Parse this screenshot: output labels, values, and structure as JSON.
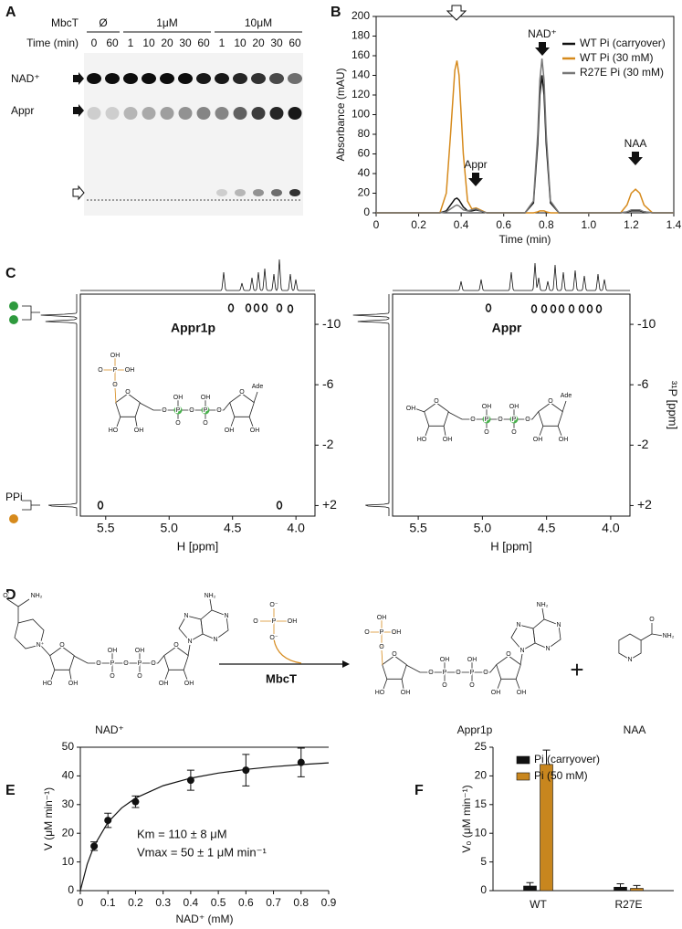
{
  "panel_labels": [
    "A",
    "B",
    "C",
    "D",
    "E",
    "F"
  ],
  "gel": {
    "enzyme_label": "MbcT",
    "time_label": "Time (min)",
    "groups": [
      "Ø",
      "1μM",
      "10μM"
    ],
    "lanes": [
      "0",
      "60",
      "1",
      "10",
      "20",
      "30",
      "60",
      "1",
      "10",
      "20",
      "30",
      "60"
    ],
    "spots": [
      "NAD⁺",
      "Appr"
    ]
  },
  "chart_data": [
    {
      "type": "line",
      "xlabel": "Time (min)",
      "ylabel": "Absorbance (mAU)",
      "x": [
        0,
        0.1,
        0.2,
        0.3,
        0.33,
        0.35,
        0.37,
        0.38,
        0.39,
        0.41,
        0.43,
        0.45,
        0.47,
        0.49,
        0.52,
        0.6,
        0.7,
        0.74,
        0.76,
        0.77,
        0.78,
        0.79,
        0.8,
        0.82,
        0.86,
        1.0,
        1.15,
        1.18,
        1.2,
        1.22,
        1.24,
        1.26,
        1.3,
        1.4
      ],
      "series": [
        {
          "name": "WT Pi (carryover)",
          "color": "#111111",
          "values": [
            0,
            0,
            0,
            0,
            2,
            8,
            14,
            15,
            13,
            6,
            2,
            2,
            3,
            2,
            0,
            0,
            0,
            10,
            70,
            120,
            140,
            120,
            70,
            10,
            0,
            0,
            0,
            1,
            2,
            2,
            2,
            1,
            0,
            0
          ]
        },
        {
          "name": "WT Pi (30 mM)",
          "color": "#d68a1c",
          "values": [
            0,
            0,
            0,
            0,
            20,
            80,
            145,
            155,
            140,
            60,
            12,
            4,
            5,
            3,
            0,
            0,
            0,
            0,
            1,
            2,
            2,
            2,
            1,
            0,
            0,
            0,
            0,
            8,
            20,
            24,
            20,
            8,
            0,
            0
          ]
        },
        {
          "name": "R27E Pi (30 mM)",
          "color": "#777777",
          "values": [
            0,
            0,
            0,
            0,
            1,
            4,
            7,
            8,
            7,
            3,
            2,
            3,
            4,
            2,
            0,
            0,
            0,
            12,
            80,
            135,
            157,
            135,
            80,
            12,
            0,
            0,
            0,
            1,
            3,
            3,
            3,
            1,
            0,
            0
          ]
        }
      ],
      "xlim": [
        0,
        1.4
      ],
      "xticks": [
        0,
        0.2,
        0.4,
        0.6,
        0.8,
        {
          "value": 1,
          "label": "1.0"
        },
        1.2,
        1.4
      ],
      "ylim": [
        0,
        200
      ],
      "yticks": [
        0,
        20,
        40,
        60,
        80,
        100,
        120,
        140,
        160,
        180,
        200
      ],
      "annotations": [
        "Appr",
        "NAD⁺",
        "NAA"
      ],
      "legend": "upper right"
    },
    {
      "type": "nmr2d",
      "title": "Appr1p",
      "xlabel": "H [ppm]",
      "xlim": [
        5.7,
        3.85
      ],
      "xticks": [
        5.5,
        {
          "value": 5,
          "label": "5.0"
        },
        4.5,
        {
          "value": 4,
          "label": "4.0"
        }
      ],
      "ylim": [
        -12,
        2.7
      ],
      "yticks": [
        -10,
        -6,
        -2,
        {
          "value": 2,
          "label": "+2"
        }
      ],
      "side_label": "PPi",
      "structure": [
        "O",
        "HO",
        "OH",
        "O",
        "P",
        "OH",
        "O",
        "O",
        "P",
        "OH",
        "O",
        "O",
        "O",
        "OH",
        "OH",
        "O",
        "P",
        "OH",
        "O",
        "OH",
        "Ade"
      ]
    },
    {
      "type": "nmr2d",
      "title": "Appr",
      "xlabel": "H [ppm]",
      "ylabel": "³¹P [ppm]",
      "xlim": [
        5.7,
        3.85
      ],
      "xticks": [
        5.5,
        {
          "value": 5,
          "label": "5.0"
        },
        4.5,
        {
          "value": 4,
          "label": "4.0"
        }
      ],
      "ylim": [
        -12,
        2.7
      ],
      "yticks": [
        -10,
        -6,
        -2,
        {
          "value": 2,
          "label": "+2"
        }
      ],
      "structure": [
        "O",
        "HO",
        "OH",
        "O",
        "P",
        "OH",
        "O",
        "O",
        "P",
        "OH",
        "O",
        "O",
        "O",
        "OH",
        "OH",
        "OH",
        "Ade"
      ]
    },
    {
      "type": "scatter",
      "xlabel": "NAD⁺ (mM)",
      "ylabel": "V (μM min⁻¹)",
      "x": [
        0.05,
        0.1,
        0.2,
        0.4,
        0.6,
        0.8
      ],
      "values": [
        15.5,
        24.5,
        31,
        38.5,
        42,
        44.7
      ],
      "errors": [
        1.5,
        2.5,
        2,
        3.5,
        5.5,
        5
      ],
      "fit": {
        "x": [
          0,
          0.025,
          0.05,
          0.1,
          0.15,
          0.2,
          0.3,
          0.4,
          0.5,
          0.6,
          0.7,
          0.8,
          0.9
        ],
        "y": [
          0,
          9.26,
          15.63,
          23.81,
          28.85,
          32.26,
          36.59,
          39.22,
          40.98,
          42.25,
          43.21,
          43.96,
          44.55
        ]
      },
      "color": "#111111",
      "xlim": [
        0,
        0.9
      ],
      "xticks": [
        0,
        0.1,
        0.2,
        0.3,
        0.4,
        0.5,
        0.6,
        0.7,
        0.8,
        0.9
      ],
      "ylim": [
        0,
        50
      ],
      "yticks": [
        0,
        10,
        20,
        30,
        40,
        50
      ],
      "annotations": [
        "Km = 110 ± 8 μM",
        "Vmax = 50 ± 1 μM min⁻¹"
      ]
    },
    {
      "type": "bar",
      "ylabel": "V₀ (μM min⁻¹)",
      "categories": [
        "WT",
        "R27E"
      ],
      "series": [
        {
          "name": "Pi (carryover)",
          "color": "#111111",
          "values": [
            0.8,
            0.6
          ],
          "errors": [
            0.6,
            0.6
          ]
        },
        {
          "name": "Pi (50 mM)",
          "color": "#c8861e",
          "values": [
            22,
            0.4
          ],
          "errors": [
            2.5,
            0.5
          ]
        }
      ],
      "ylim": [
        0,
        25
      ],
      "yticks": [
        0,
        5,
        10,
        15,
        20,
        25
      ],
      "legend": "upper left"
    }
  ],
  "scheme": {
    "substrate": "NAD⁺",
    "enzyme": "MbcT",
    "product": "Appr1p",
    "byproduct": "NAA",
    "plus": "+",
    "substrate_atoms": [
      "O",
      "HO",
      "OH",
      "O",
      "P",
      "OH",
      "O",
      "O",
      "P",
      "OH",
      "O",
      "O",
      "O",
      "OH",
      "OH",
      "N⁺",
      "O",
      "NH₂",
      "N",
      "N",
      "N",
      "N",
      "NH₂"
    ],
    "phosphate_atoms": [
      "P",
      "O⁻",
      "O",
      "OH",
      "O⁻"
    ],
    "product_atoms": [
      "O",
      "HO",
      "OH",
      "O",
      "P",
      "OH",
      "O",
      "O",
      "P",
      "OH",
      "O",
      "O",
      "O",
      "OH",
      "OH",
      "O",
      "P",
      "OH",
      "O",
      "OH",
      "N",
      "N",
      "N",
      "N",
      "NH₂"
    ],
    "byproduct_atoms": [
      "N",
      "O",
      "NH₂"
    ]
  }
}
